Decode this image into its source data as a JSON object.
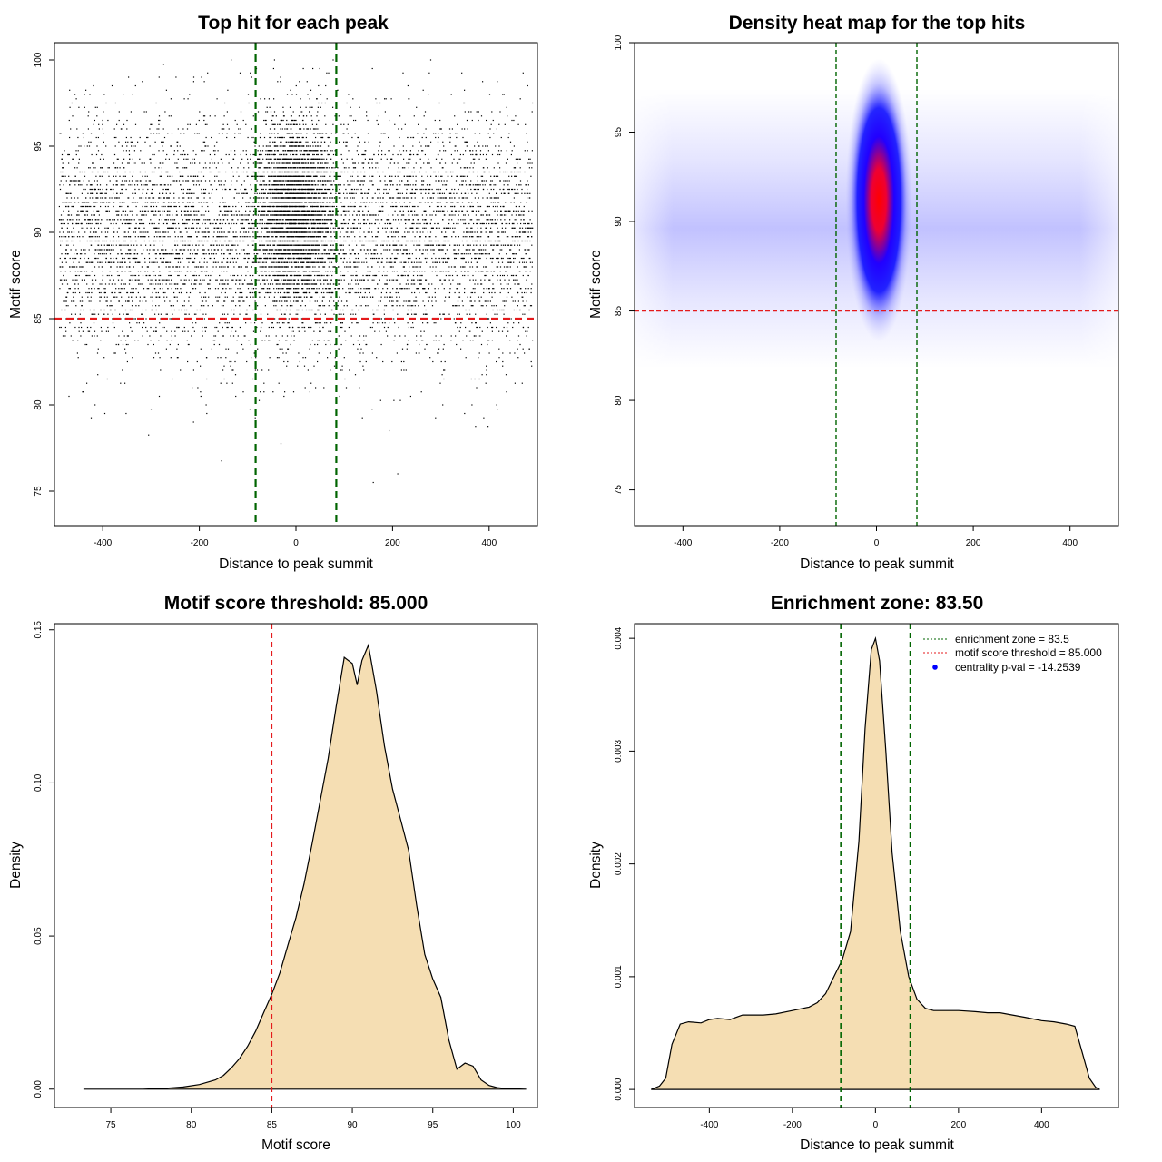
{
  "chart_data": [
    {
      "type": "scatter",
      "title": "Top hit for each peak",
      "xlabel": "Distance to peak summit",
      "ylabel": "Motif score",
      "xlim": [
        -500,
        500
      ],
      "ylim": [
        73,
        101
      ],
      "xticks": [
        -400,
        -200,
        0,
        200,
        400
      ],
      "yticks": [
        75,
        80,
        85,
        90,
        95,
        100
      ],
      "distribution": {
        "background": {
          "x_range": [
            -490,
            490
          ],
          "y_mean": 89.8,
          "y_sd": 3.4
        },
        "central_peak": {
          "x_center": 0,
          "x_sd": 38,
          "y_mean": 91.2,
          "y_sd": 2.6
        },
        "n_background_points": 7000,
        "n_central_points": 3200
      },
      "hlines": [
        {
          "y": 85,
          "color": "#e41a1c",
          "label": "motif score threshold"
        }
      ],
      "vlines": [
        {
          "x": -83.5,
          "color": "#006400",
          "label": "enrichment zone"
        },
        {
          "x": 83.5,
          "color": "#006400",
          "label": "enrichment zone"
        }
      ]
    },
    {
      "type": "heatmap",
      "title": "Density heat map for the top hits",
      "xlabel": "Distance to peak summit",
      "ylabel": "Motif score",
      "xlim": [
        -500,
        500
      ],
      "ylim": [
        73,
        100
      ],
      "xticks": [
        -400,
        -200,
        0,
        200,
        400
      ],
      "yticks": [
        75,
        80,
        85,
        90,
        95,
        100
      ],
      "density": {
        "background": {
          "x_range": [
            -490,
            490
          ],
          "y_mean": 89.6,
          "y_sd": 3.0
        },
        "central_peak": {
          "x_center": 5,
          "x_sd": 30,
          "y_mean": 91.2,
          "y_sd": 2.4
        }
      },
      "colors": [
        "#ffffff",
        "#0000ff",
        "#ff0000"
      ],
      "hlines": [
        {
          "y": 85,
          "color": "#e41a1c"
        }
      ],
      "vlines": [
        {
          "x": -83.5,
          "color": "#006400"
        },
        {
          "x": 83.5,
          "color": "#006400"
        }
      ]
    },
    {
      "type": "area",
      "title": "Motif score threshold: 85.000",
      "xlabel": "Motif score",
      "ylabel": "Density",
      "xlim": [
        71.5,
        101.5
      ],
      "ylim": [
        -0.006,
        0.152
      ],
      "xticks": [
        75,
        80,
        85,
        90,
        95,
        100
      ],
      "yticks": [
        0.0,
        0.05,
        0.1,
        0.15
      ],
      "ytick_labels": [
        "0.00",
        "0.05",
        "0.10",
        "0.15"
      ],
      "fill": "#f5deb3",
      "x": [
        73.3,
        75,
        77,
        78.5,
        79.5,
        80.5,
        81.5,
        82,
        82.5,
        83,
        83.5,
        84,
        84.5,
        85,
        85.5,
        86,
        86.5,
        87,
        87.5,
        88,
        88.5,
        89,
        89.5,
        90,
        90.3,
        90.6,
        91,
        91.5,
        92,
        92.5,
        93,
        93.5,
        94,
        94.5,
        95,
        95.5,
        96,
        96.5,
        97,
        97.5,
        98,
        98.5,
        99,
        99.5,
        100,
        100.8
      ],
      "y": [
        0,
        0,
        0,
        0.0003,
        0.0007,
        0.0015,
        0.003,
        0.0045,
        0.007,
        0.01,
        0.014,
        0.019,
        0.025,
        0.031,
        0.038,
        0.047,
        0.056,
        0.067,
        0.08,
        0.094,
        0.108,
        0.125,
        0.141,
        0.139,
        0.132,
        0.14,
        0.145,
        0.13,
        0.112,
        0.098,
        0.088,
        0.078,
        0.06,
        0.044,
        0.036,
        0.03,
        0.016,
        0.0065,
        0.0085,
        0.0075,
        0.003,
        0.0012,
        0.0005,
        0.0002,
        0.0001,
        0
      ],
      "vlines": [
        {
          "x": 85,
          "color": "#e41a1c"
        }
      ]
    },
    {
      "type": "area",
      "title": "Enrichment zone: 83.50",
      "xlabel": "Distance to peak summit",
      "ylabel": "Density",
      "xlim": [
        -580,
        585
      ],
      "ylim": [
        -0.00016,
        0.00413
      ],
      "xticks": [
        -400,
        -200,
        0,
        200,
        400
      ],
      "yticks": [
        0.0,
        0.001,
        0.002,
        0.003,
        0.004
      ],
      "ytick_labels": [
        "0.000",
        "0.001",
        "0.002",
        "0.003",
        "0.004"
      ],
      "fill": "#f5deb3",
      "x": [
        -540,
        -520,
        -505,
        -490,
        -470,
        -450,
        -420,
        -400,
        -380,
        -350,
        -320,
        -300,
        -270,
        -240,
        -200,
        -160,
        -140,
        -120,
        -100,
        -80,
        -60,
        -40,
        -25,
        -10,
        0,
        10,
        25,
        40,
        60,
        80,
        100,
        120,
        140,
        160,
        200,
        240,
        270,
        300,
        330,
        360,
        400,
        430,
        460,
        480,
        500,
        515,
        530,
        540
      ],
      "y": [
        0,
        3e-05,
        0.0001,
        0.0004,
        0.00058,
        0.0006,
        0.00059,
        0.00062,
        0.00063,
        0.00062,
        0.00066,
        0.00066,
        0.00066,
        0.00067,
        0.0007,
        0.00073,
        0.00077,
        0.00085,
        0.001,
        0.00115,
        0.0014,
        0.0022,
        0.0032,
        0.0039,
        0.004,
        0.0038,
        0.003,
        0.0021,
        0.0014,
        0.001,
        0.0008,
        0.00072,
        0.0007,
        0.0007,
        0.0007,
        0.00069,
        0.00068,
        0.00068,
        0.00066,
        0.00064,
        0.00061,
        0.0006,
        0.00058,
        0.00056,
        0.0003,
        0.0001,
        2e-05,
        0
      ],
      "vlines": [
        {
          "x": -83.5,
          "color": "#006400"
        },
        {
          "x": 83.5,
          "color": "#006400"
        }
      ],
      "legend": [
        {
          "label": "enrichment zone = 83.5",
          "color": "#006400",
          "style": "dotted-line"
        },
        {
          "label": "motif score threshold = 85.000",
          "color": "#e41a1c",
          "style": "dotted-line"
        },
        {
          "label": "centrality p-val = -14.2539",
          "color": "#0000ff",
          "style": "point"
        }
      ]
    }
  ]
}
